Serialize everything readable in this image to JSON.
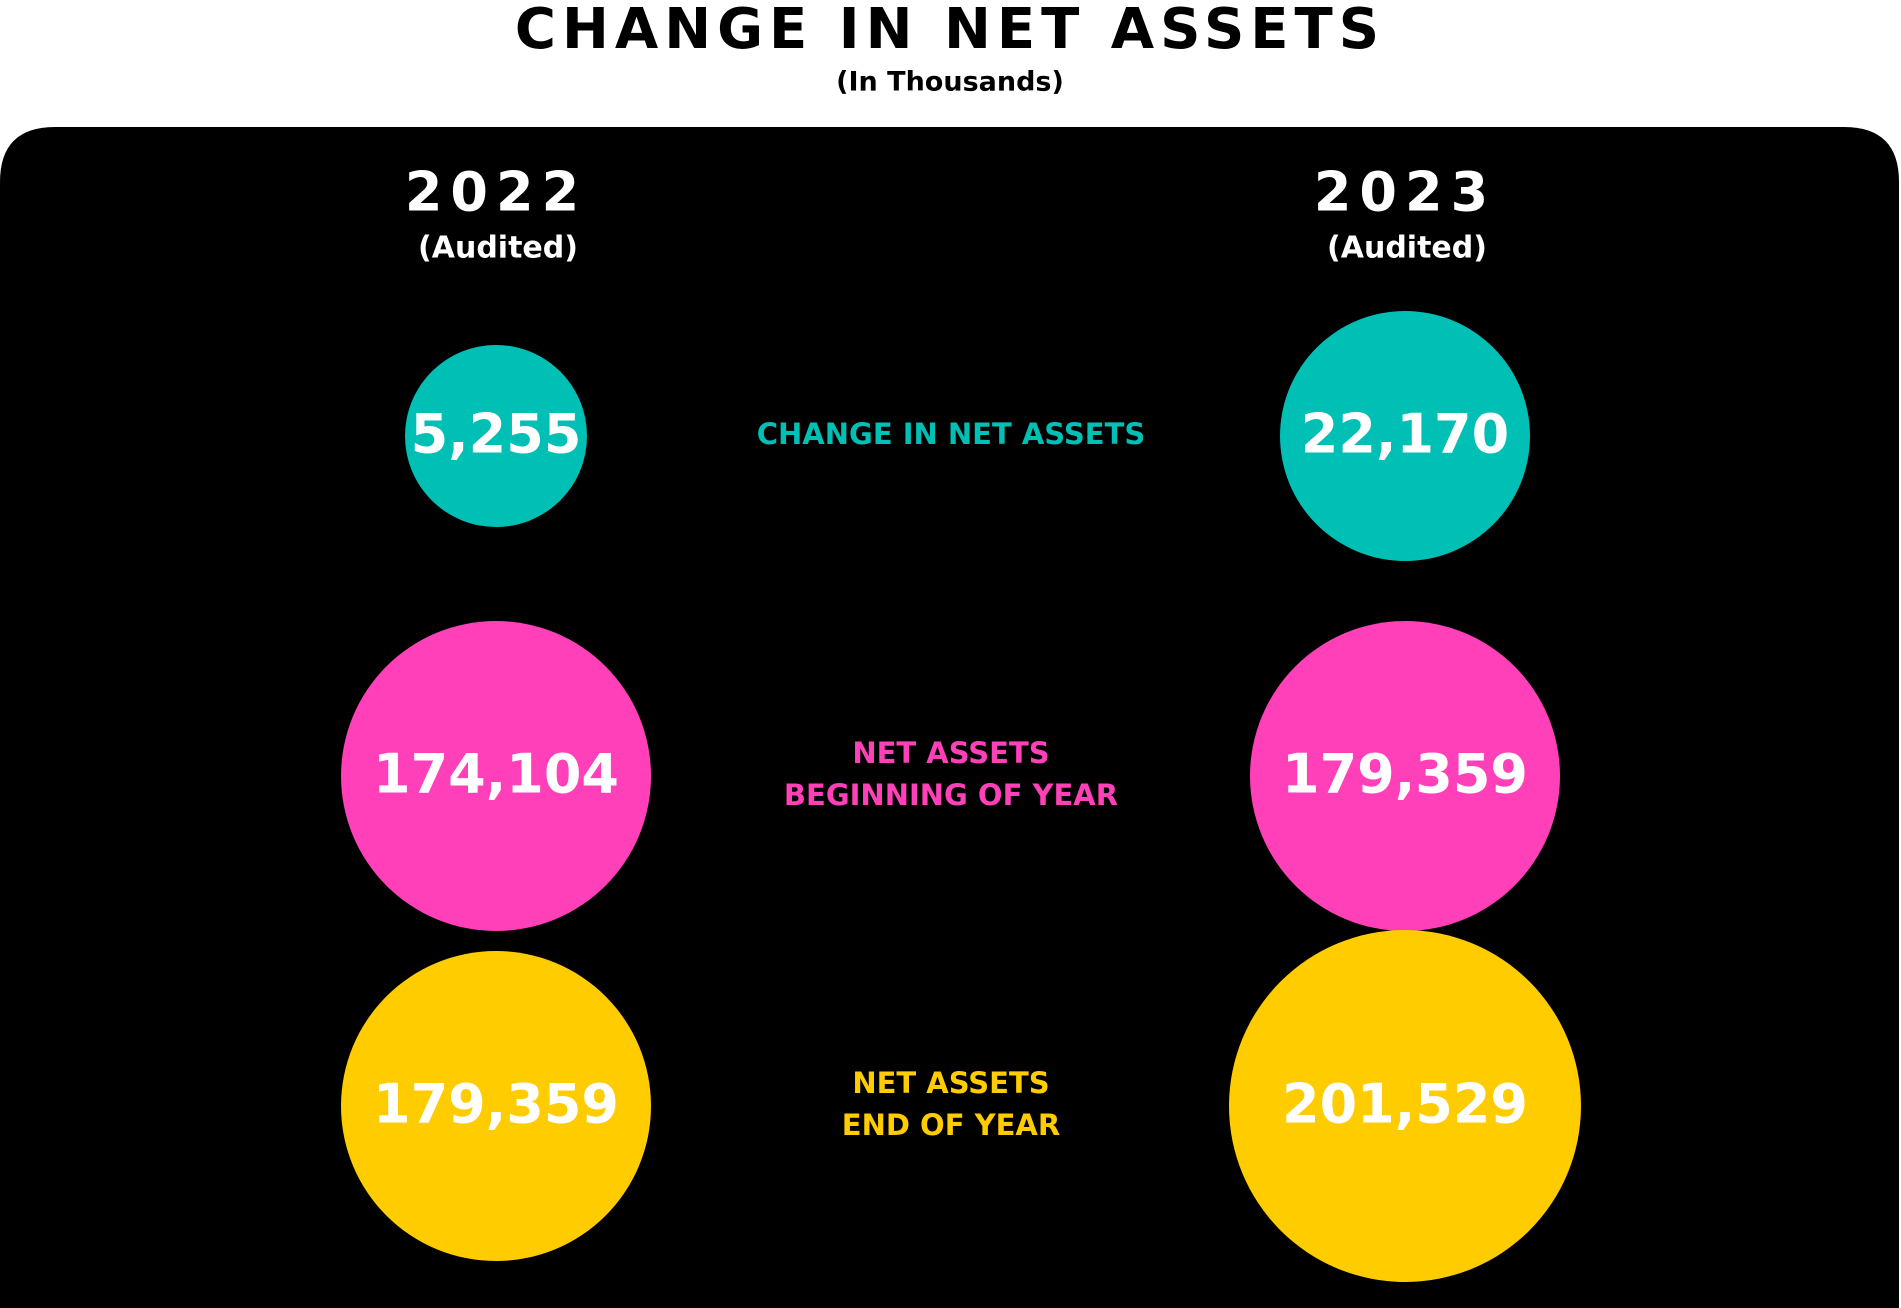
{
  "chart_data": {
    "type": "bubble",
    "title": "CHANGE IN NET ASSETS",
    "subtitle": "(In Thousands)",
    "categories": [
      [
        "CHANGE IN NET ASSETS"
      ],
      [
        "NET ASSETS",
        "BEGINNING OF YEAR"
      ],
      [
        "NET ASSETS",
        "END OF YEAR"
      ]
    ],
    "colors": [
      "#00bfb5",
      "#ff40b8",
      "#ffcc00"
    ],
    "series": [
      {
        "name": "2022",
        "sublabel": "(Audited)",
        "values": [
          5255,
          174104,
          179359
        ],
        "value_labels": [
          "5,255",
          "174,104",
          "179,359"
        ]
      },
      {
        "name": "2023",
        "sublabel": "(Audited)",
        "values": [
          22170,
          179359,
          201529
        ],
        "value_labels": [
          "22,170",
          "179,359",
          "201,529"
        ]
      }
    ]
  }
}
